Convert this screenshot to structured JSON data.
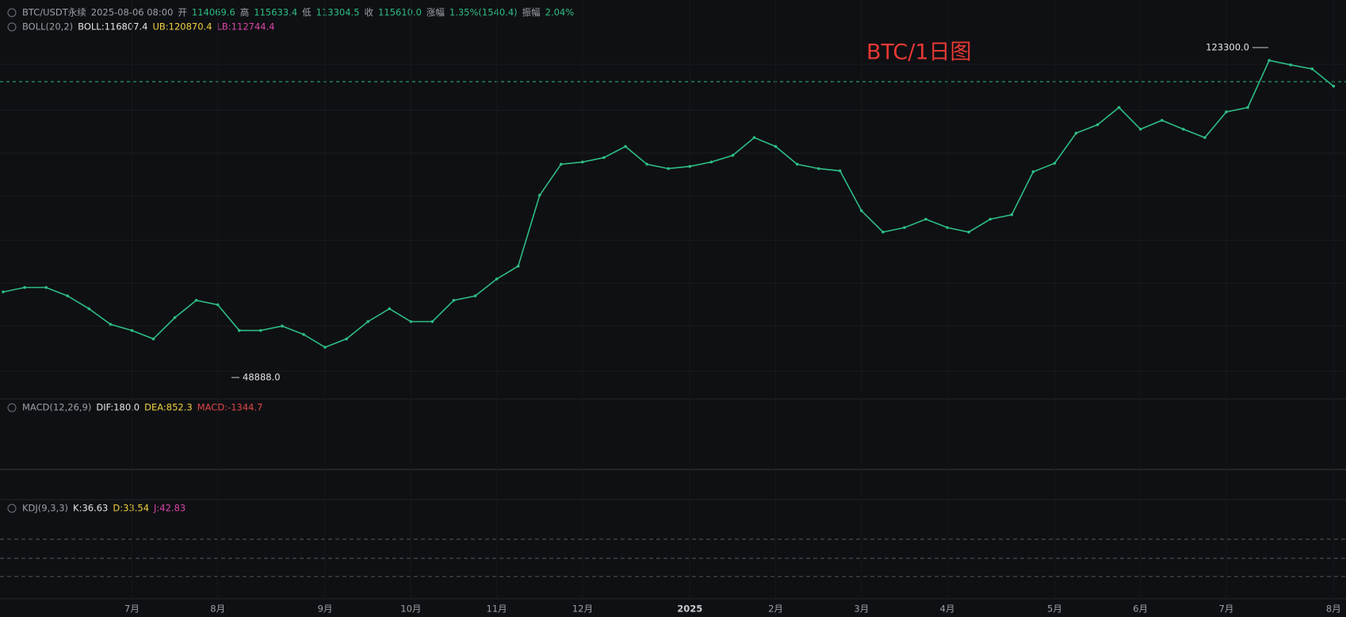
{
  "header": {
    "symbol": "BTC/USDT永续",
    "datetime": "2025-08-06 08:00",
    "fields": [
      {
        "label": "开",
        "value": "114069.6"
      },
      {
        "label": "高",
        "value": "115633.4"
      },
      {
        "label": "低",
        "value": "113304.5"
      },
      {
        "label": "收",
        "value": "115610.0"
      },
      {
        "label": "涨幅",
        "value": "1.35%(1540.4)"
      },
      {
        "label": "振幅",
        "value": "2.04%"
      }
    ]
  },
  "indicators": {
    "boll": {
      "name": "BOLL(20,2)",
      "items": [
        {
          "text": "BOLL:116807.4",
          "color": "#e6e6e6"
        },
        {
          "text": "UB:120870.4",
          "color": "#f0d040"
        },
        {
          "text": "LB:112744.4",
          "color": "#d946a8"
        }
      ]
    },
    "macd": {
      "name": "MACD(12,26,9)",
      "items": [
        {
          "text": "DIF:180.0",
          "color": "#e6e6e6"
        },
        {
          "text": "DEA:852.3",
          "color": "#f0d040"
        },
        {
          "text": "MACD:-1344.7",
          "color": "#e04848"
        }
      ]
    },
    "kdj": {
      "name": "KDJ(9,3,3)",
      "items": [
        {
          "text": "K:36.63",
          "color": "#e6e6e6"
        },
        {
          "text": "D:33.54",
          "color": "#f0d040"
        },
        {
          "text": "J:42.83",
          "color": "#d946a8"
        }
      ]
    }
  },
  "chart_data": {
    "type": "line",
    "title": "BTC/1日图",
    "categories": [
      null,
      null,
      null,
      null,
      null,
      null,
      "7月",
      null,
      null,
      null,
      "8月",
      null,
      null,
      null,
      null,
      "9月",
      null,
      null,
      null,
      "10月",
      null,
      null,
      null,
      "11月",
      null,
      null,
      null,
      "12月",
      null,
      null,
      null,
      null,
      "2025",
      null,
      null,
      null,
      "2月",
      null,
      null,
      null,
      "3月",
      null,
      null,
      null,
      "4月",
      null,
      null,
      null,
      null,
      "5月",
      null,
      null,
      null,
      "6月",
      null,
      null,
      null,
      "7月",
      null,
      null,
      null,
      null,
      "8月"
    ],
    "series": [
      {
        "name": "BTC/USDT永续",
        "color": "#2ebd85",
        "values": [
          68200,
          69200,
          69200,
          67300,
          64400,
          60900,
          59500,
          57600,
          62400,
          66300,
          65300,
          59500,
          59500,
          60500,
          58600,
          55700,
          57600,
          61500,
          64400,
          61500,
          61500,
          66300,
          67300,
          71100,
          74000,
          90000,
          97000,
          97500,
          98500,
          101000,
          97000,
          96000,
          96500,
          97500,
          99000,
          103000,
          101000,
          97000,
          96000,
          95500,
          86500,
          81700,
          82700,
          84600,
          82700,
          81700,
          84600,
          85600,
          95300,
          97200,
          104000,
          105900,
          109800,
          104900,
          106900,
          104900,
          103000,
          108800,
          109800,
          120400,
          119400,
          118500,
          114600
        ]
      }
    ],
    "ylim": [
      44600,
      130100
    ],
    "annotations": [
      {
        "value": 123300,
        "label": "123300.0"
      },
      {
        "value": 48888,
        "label": "48888.0"
      }
    ],
    "last_price": 115610
  }
}
